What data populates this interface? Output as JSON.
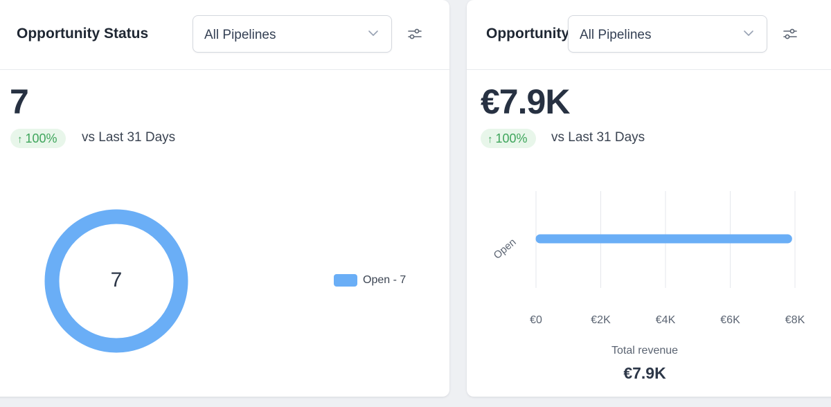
{
  "status_card": {
    "title": "Opportunity Status",
    "pipeline_select": "All Pipelines",
    "value": "7",
    "delta": "100%",
    "delta_direction": "up",
    "comparison": "vs Last 31 Days",
    "donut_center": "7",
    "legend": [
      {
        "label": "Open - 7",
        "color": "#6aaef6"
      }
    ]
  },
  "revenue_card": {
    "title": "Opportunity Value",
    "pipeline_select": "All Pipelines",
    "value": "€7.9K",
    "delta": "100%",
    "delta_direction": "up",
    "comparison": "vs Last 31 Days",
    "total_label": "Total revenue",
    "total_value": "€7.9K"
  },
  "icons": {
    "select_chevron": "chevron-down-icon",
    "filter": "sliders-icon",
    "delta_arrow": "arrow-up-icon"
  },
  "colors": {
    "accent": "#6aaef6",
    "delta_bg": "#e8f6ea",
    "delta_fg": "#3ea55b"
  },
  "chart_data": [
    {
      "type": "pie",
      "variant": "donut",
      "categories": [
        "Open"
      ],
      "values": [
        7
      ],
      "colors": [
        "#6aaef6"
      ],
      "legend_position": "right"
    },
    {
      "type": "bar",
      "orientation": "horizontal",
      "categories": [
        "Open"
      ],
      "values": [
        7900
      ],
      "xlim": [
        0,
        8000
      ],
      "xticks": [
        "€0",
        "€2K",
        "€4K",
        "€6K",
        "€8K"
      ],
      "grid": true,
      "color": "#6aaef6"
    }
  ]
}
